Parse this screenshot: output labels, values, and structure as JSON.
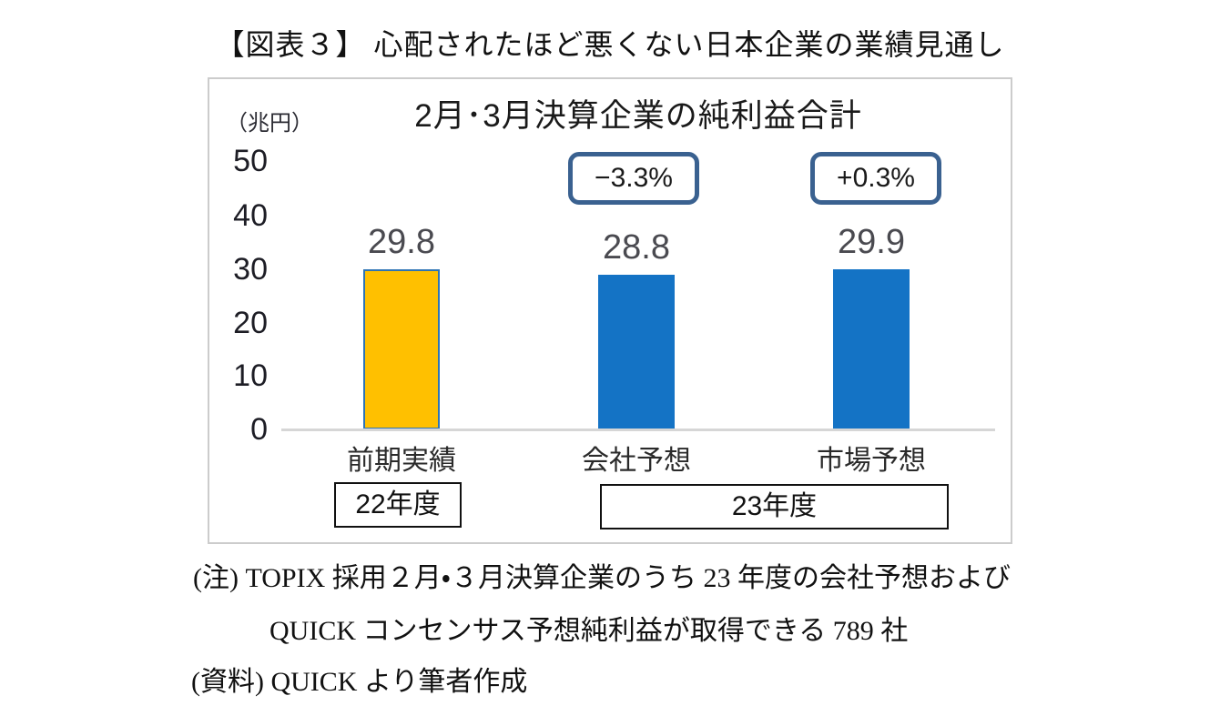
{
  "figure_title": "【図表３】 心配されたほど悪くない日本企業の業績見通し",
  "chart": {
    "title": "2月･3月決算企業の純利益合計",
    "unit_label": "（兆円）",
    "y_ticks": [
      "50",
      "40",
      "30",
      "20",
      "10",
      "0"
    ],
    "bars": [
      {
        "label": "前期実績",
        "value_label": "29.8",
        "callout": ""
      },
      {
        "label": "会社予想",
        "value_label": "28.8",
        "callout": "−3.3%"
      },
      {
        "label": "市場予想",
        "value_label": "29.9",
        "callout": "+0.3%"
      }
    ],
    "period_boxes": [
      {
        "label": "22年度"
      },
      {
        "label": "23年度"
      }
    ]
  },
  "notes": {
    "line1": "(注) TOPIX 採用２月・３月決算企業のうち 23 年度の会社予想および",
    "line2": "QUICK コンセンサス予想純利益が取得できる 789 社",
    "line3": "(資料) QUICK より筆者作成"
  },
  "colors": {
    "bar_actual": "#FFC000",
    "bar_actual_border": "#2E74B5",
    "bar_forecast": "#1473C5",
    "callout_border": "#3A6190",
    "value_label": "#4A4A50",
    "axis_line": "#D6D6D6",
    "chart_border": "#CCCCCC"
  },
  "chart_data": {
    "type": "bar",
    "title": "2月･3月決算企業の純利益合計",
    "ylabel": "（兆円）",
    "categories": [
      "前期実績",
      "会社予想",
      "市場予想"
    ],
    "values": [
      29.8,
      28.8,
      29.9
    ],
    "colors": [
      "#FFC000",
      "#1473C5",
      "#1473C5"
    ],
    "bar_borders": [
      "#2E74B5",
      null,
      null
    ],
    "data_labels": [
      "29.8",
      "28.8",
      "29.9"
    ],
    "annotations": [
      {
        "category": "会社予想",
        "text": "−3.3%"
      },
      {
        "category": "市場予想",
        "text": "+0.3%"
      }
    ],
    "period_groups": [
      {
        "label": "22年度",
        "categories": [
          "前期実績"
        ]
      },
      {
        "label": "23年度",
        "categories": [
          "会社予想",
          "市場予想"
        ]
      }
    ],
    "ylim": [
      0,
      50
    ],
    "yticks": [
      0,
      10,
      20,
      30,
      40,
      50
    ],
    "grid": false,
    "legend": "none"
  }
}
